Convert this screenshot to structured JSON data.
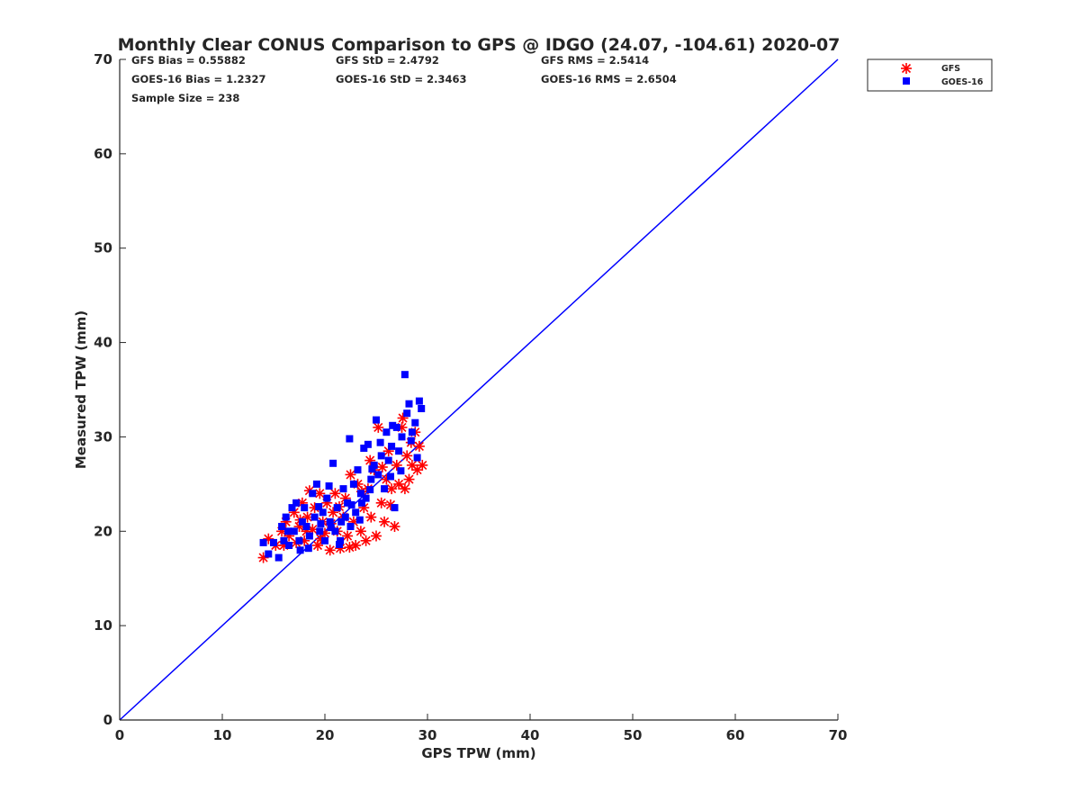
{
  "chart_data": {
    "type": "scatter",
    "title": "Monthly Clear CONUS Comparison to GPS @ IDGO (24.07, -104.61) 2020-07",
    "xlabel": "GPS TPW (mm)",
    "ylabel": "Measured TPW (mm)",
    "xlim": [
      0,
      70
    ],
    "ylim": [
      0,
      70
    ],
    "xticks": [
      "0",
      "10",
      "20",
      "30",
      "40",
      "50",
      "60",
      "70"
    ],
    "yticks": [
      "0",
      "10",
      "20",
      "30",
      "40",
      "50",
      "60",
      "70"
    ],
    "grid": false,
    "legend_position": "top-right, outside plot",
    "stats": [
      "GFS Bias = 0.55882",
      "GFS StD = 2.4792",
      "GFS RMS = 2.5414",
      "GOES-16 Bias = 1.2327",
      "GOES-16 StD = 2.3463",
      "GOES-16 RMS = 2.6504",
      "Sample Size = 238"
    ],
    "reference_line": {
      "x": [
        0,
        70
      ],
      "y": [
        0,
        70
      ],
      "color": "#0000ff"
    },
    "series": [
      {
        "name": "GFS",
        "marker": "asterisk",
        "color": "#ff0000",
        "points": [
          [
            14.0,
            17.2
          ],
          [
            14.5,
            19.2
          ],
          [
            15.2,
            18.5
          ],
          [
            15.8,
            20.0
          ],
          [
            16.2,
            21.0
          ],
          [
            16.5,
            19.5
          ],
          [
            17.0,
            22.0
          ],
          [
            17.2,
            18.8
          ],
          [
            17.5,
            20.5
          ],
          [
            17.8,
            23.0
          ],
          [
            18.0,
            19.0
          ],
          [
            18.3,
            21.5
          ],
          [
            18.5,
            24.3
          ],
          [
            18.8,
            20.2
          ],
          [
            19.0,
            22.5
          ],
          [
            19.3,
            18.5
          ],
          [
            19.5,
            24.0
          ],
          [
            19.8,
            21.0
          ],
          [
            20.0,
            19.8
          ],
          [
            20.2,
            23.0
          ],
          [
            20.5,
            18.0
          ],
          [
            20.8,
            22.0
          ],
          [
            21.0,
            24.0
          ],
          [
            21.2,
            20.0
          ],
          [
            21.5,
            18.2
          ],
          [
            21.8,
            21.5
          ],
          [
            22.0,
            23.5
          ],
          [
            22.2,
            19.5
          ],
          [
            22.5,
            26.0
          ],
          [
            22.8,
            21.0
          ],
          [
            23.0,
            18.5
          ],
          [
            23.2,
            25.0
          ],
          [
            23.5,
            20.0
          ],
          [
            23.8,
            22.5
          ],
          [
            24.0,
            19.0
          ],
          [
            24.2,
            24.5
          ],
          [
            24.5,
            21.5
          ],
          [
            24.8,
            26.5
          ],
          [
            25.0,
            19.5
          ],
          [
            25.2,
            31.0
          ],
          [
            25.5,
            23.0
          ],
          [
            25.8,
            21.0
          ],
          [
            26.0,
            25.5
          ],
          [
            26.2,
            28.5
          ],
          [
            26.5,
            24.5
          ],
          [
            26.8,
            20.5
          ],
          [
            27.0,
            27.0
          ],
          [
            27.2,
            25.0
          ],
          [
            27.5,
            31.0
          ],
          [
            27.8,
            24.5
          ],
          [
            28.0,
            28.0
          ],
          [
            28.2,
            25.5
          ],
          [
            28.5,
            27.0
          ],
          [
            28.8,
            30.5
          ],
          [
            29.0,
            26.5
          ],
          [
            29.2,
            29.0
          ],
          [
            29.5,
            27.0
          ],
          [
            16.0,
            18.5
          ],
          [
            18.2,
            20.0
          ],
          [
            20.6,
            20.8
          ],
          [
            22.4,
            18.3
          ],
          [
            24.4,
            27.5
          ],
          [
            26.4,
            22.8
          ],
          [
            27.6,
            32.0
          ],
          [
            19.6,
            19.2
          ],
          [
            21.4,
            22.6
          ],
          [
            23.6,
            24.2
          ],
          [
            25.6,
            26.8
          ],
          [
            28.4,
            29.4
          ],
          [
            17.6,
            21.2
          ]
        ]
      },
      {
        "name": "GOES-16",
        "marker": "square",
        "color": "#0000ff",
        "points": [
          [
            14.0,
            18.8
          ],
          [
            14.5,
            17.6
          ],
          [
            15.0,
            18.8
          ],
          [
            15.5,
            17.2
          ],
          [
            15.8,
            20.5
          ],
          [
            16.0,
            19.0
          ],
          [
            16.2,
            21.5
          ],
          [
            16.5,
            18.5
          ],
          [
            16.8,
            22.5
          ],
          [
            17.0,
            20.0
          ],
          [
            17.2,
            23.0
          ],
          [
            17.5,
            19.0
          ],
          [
            17.8,
            21.0
          ],
          [
            18.0,
            22.5
          ],
          [
            18.2,
            20.5
          ],
          [
            18.5,
            19.5
          ],
          [
            18.8,
            24.0
          ],
          [
            19.0,
            21.5
          ],
          [
            19.2,
            25.0
          ],
          [
            19.5,
            20.0
          ],
          [
            19.8,
            22.0
          ],
          [
            20.0,
            19.0
          ],
          [
            20.2,
            23.5
          ],
          [
            20.5,
            21.0
          ],
          [
            20.8,
            27.2
          ],
          [
            21.0,
            20.0
          ],
          [
            21.2,
            22.5
          ],
          [
            21.5,
            19.0
          ],
          [
            21.8,
            24.5
          ],
          [
            22.0,
            21.5
          ],
          [
            22.2,
            23.0
          ],
          [
            22.4,
            29.8
          ],
          [
            22.5,
            20.5
          ],
          [
            22.8,
            25.0
          ],
          [
            23.0,
            22.0
          ],
          [
            23.2,
            26.5
          ],
          [
            23.5,
            24.0
          ],
          [
            23.8,
            28.8
          ],
          [
            24.0,
            23.5
          ],
          [
            24.2,
            29.2
          ],
          [
            24.5,
            25.5
          ],
          [
            24.8,
            27.0
          ],
          [
            25.0,
            31.8
          ],
          [
            25.2,
            26.0
          ],
          [
            25.5,
            28.0
          ],
          [
            25.8,
            24.5
          ],
          [
            26.0,
            30.5
          ],
          [
            26.2,
            27.5
          ],
          [
            26.5,
            29.0
          ],
          [
            26.8,
            22.5
          ],
          [
            27.0,
            31.0
          ],
          [
            27.2,
            28.5
          ],
          [
            27.5,
            30.0
          ],
          [
            27.8,
            36.6
          ],
          [
            28.0,
            32.5
          ],
          [
            28.2,
            33.5
          ],
          [
            28.5,
            30.5
          ],
          [
            28.8,
            31.5
          ],
          [
            29.0,
            27.8
          ],
          [
            29.2,
            33.8
          ],
          [
            29.4,
            33.0
          ],
          [
            16.4,
            20.0
          ],
          [
            17.6,
            18.0
          ],
          [
            19.4,
            22.6
          ],
          [
            20.4,
            24.8
          ],
          [
            21.6,
            21.0
          ],
          [
            22.6,
            22.8
          ],
          [
            23.4,
            21.2
          ],
          [
            24.6,
            26.6
          ],
          [
            26.4,
            25.8
          ],
          [
            27.4,
            26.4
          ],
          [
            28.4,
            29.6
          ],
          [
            18.4,
            18.2
          ],
          [
            20.6,
            20.4
          ],
          [
            25.4,
            29.4
          ],
          [
            26.6,
            31.2
          ],
          [
            24.4,
            24.4
          ],
          [
            23.6,
            23.0
          ],
          [
            21.4,
            18.6
          ],
          [
            19.6,
            20.8
          ]
        ]
      }
    ]
  }
}
